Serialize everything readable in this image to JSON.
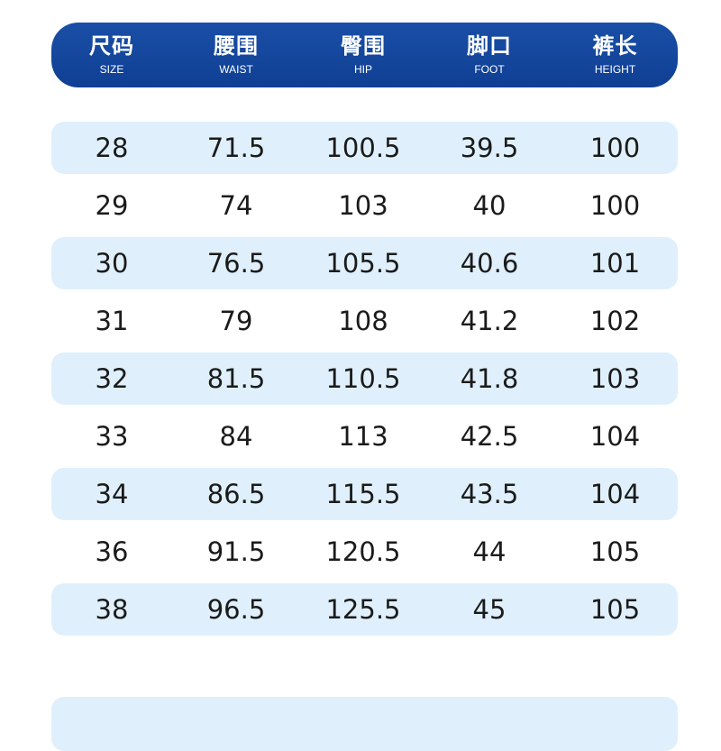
{
  "header": {
    "columns": [
      {
        "zh": "尺码",
        "en": "SIZE"
      },
      {
        "zh": "腰围",
        "en": "WAIST"
      },
      {
        "zh": "臀围",
        "en": "HIP"
      },
      {
        "zh": "脚口",
        "en": "FOOT"
      },
      {
        "zh": "裤长",
        "en": "HEIGHT"
      }
    ]
  },
  "rows": [
    [
      "28",
      "71.5",
      "100.5",
      "39.5",
      "100"
    ],
    [
      "29",
      "74",
      "103",
      "40",
      "100"
    ],
    [
      "30",
      "76.5",
      "105.5",
      "40.6",
      "101"
    ],
    [
      "31",
      "79",
      "108",
      "41.2",
      "102"
    ],
    [
      "32",
      "81.5",
      "110.5",
      "41.8",
      "103"
    ],
    [
      "33",
      "84",
      "113",
      "42.5",
      "104"
    ],
    [
      "34",
      "86.5",
      "115.5",
      "43.5",
      "104"
    ],
    [
      "36",
      "91.5",
      "120.5",
      "44",
      "105"
    ],
    [
      "38",
      "96.5",
      "125.5",
      "45",
      "105"
    ]
  ],
  "colors": {
    "header_bg": "#1a4fa7",
    "stripe_bg": "#dff0fc",
    "text": "#1b1b1b"
  }
}
